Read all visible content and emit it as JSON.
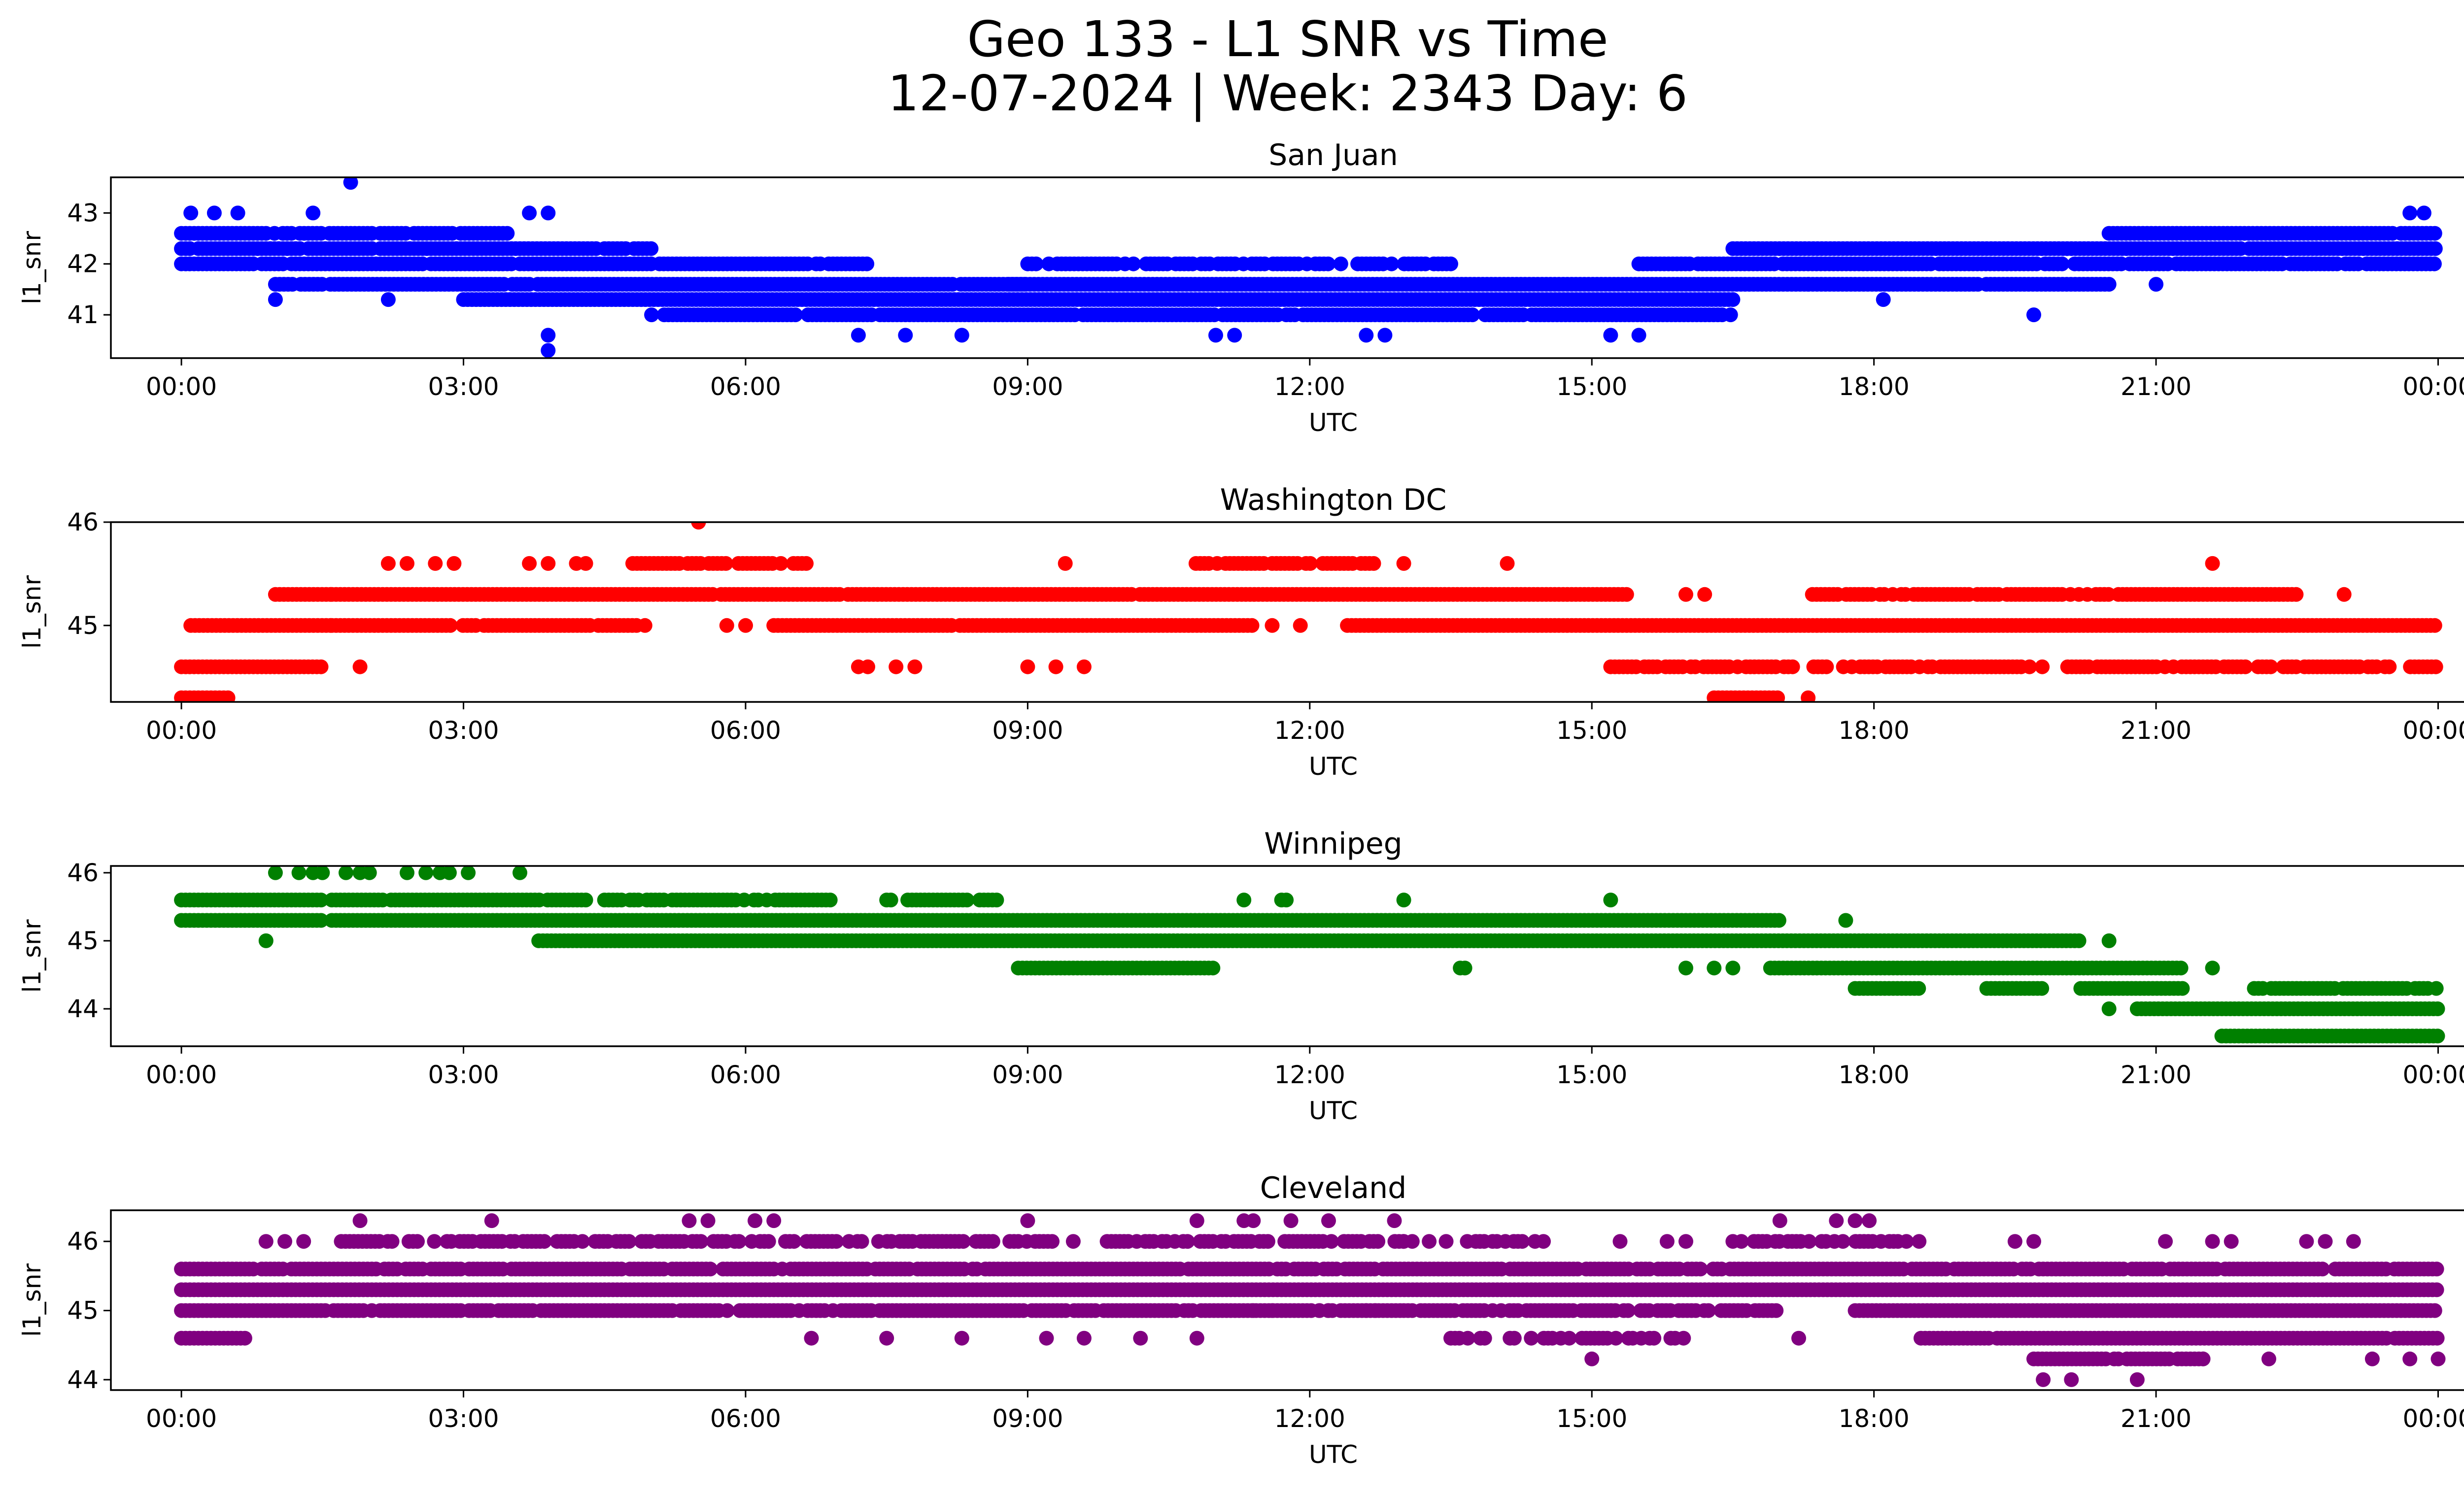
{
  "title_line1": "Geo 133 - L1 SNR vs Time",
  "title_line2": "12-07-2024 | Week: 2343 Day: 6",
  "chart_data": [
    {
      "type": "scatter",
      "title": "San Juan",
      "xlabel": "UTC",
      "ylabel": "l1_snr",
      "color": "#0000ff",
      "x_unit": "hours",
      "xlim": [
        -0.75,
        25.25
      ],
      "ylim": [
        40.15,
        43.7
      ],
      "xticks": [
        0,
        3,
        6,
        9,
        12,
        15,
        18,
        21,
        24
      ],
      "xtick_labels": [
        "00:00",
        "03:00",
        "06:00",
        "09:00",
        "12:00",
        "15:00",
        "18:00",
        "21:00",
        "00:00"
      ],
      "yticks": [
        41,
        42,
        43
      ],
      "ytick_labels": [
        "41",
        "42",
        "43"
      ],
      "bands": [
        {
          "y": 42.6,
          "start": 0.0,
          "end": 3.5,
          "density": 0.88
        },
        {
          "y": 42.3,
          "start": 0.0,
          "end": 5.0,
          "density": 0.93
        },
        {
          "y": 42.0,
          "start": 0.0,
          "end": 7.3,
          "density": 0.97
        },
        {
          "y": 41.6,
          "start": 1.0,
          "end": 9.0,
          "density": 0.96
        },
        {
          "y": 41.3,
          "start": 3.0,
          "end": 16.5,
          "density": 1.0
        },
        {
          "y": 41.0,
          "start": 5.0,
          "end": 16.5,
          "density": 0.93
        },
        {
          "y": 41.6,
          "start": 8.8,
          "end": 20.5,
          "density": 0.99
        },
        {
          "y": 42.0,
          "start": 9.0,
          "end": 13.5,
          "density": 0.8
        },
        {
          "y": 42.0,
          "start": 15.5,
          "end": 24.0,
          "density": 0.95
        },
        {
          "y": 42.3,
          "start": 16.5,
          "end": 24.0,
          "density": 0.99
        },
        {
          "y": 42.6,
          "start": 20.5,
          "end": 24.0,
          "density": 0.99
        }
      ],
      "points": [
        [
          1.8,
          43.6
        ],
        [
          0.1,
          43.0
        ],
        [
          0.35,
          43.0
        ],
        [
          0.6,
          43.0
        ],
        [
          1.4,
          43.0
        ],
        [
          3.7,
          43.0
        ],
        [
          3.9,
          43.0
        ],
        [
          23.7,
          43.0
        ],
        [
          23.85,
          43.0
        ],
        [
          3.9,
          40.3
        ],
        [
          3.9,
          40.6
        ],
        [
          7.2,
          40.6
        ],
        [
          7.7,
          40.6
        ],
        [
          8.3,
          40.6
        ],
        [
          11.0,
          40.6
        ],
        [
          11.2,
          40.6
        ],
        [
          12.6,
          40.6
        ],
        [
          12.8,
          40.6
        ],
        [
          15.2,
          40.6
        ],
        [
          15.5,
          40.6
        ],
        [
          1.0,
          41.3
        ],
        [
          2.2,
          41.3
        ],
        [
          19.7,
          41.0
        ],
        [
          17.3,
          41.6
        ],
        [
          18.1,
          41.3
        ],
        [
          21.0,
          41.6
        ]
      ]
    },
    {
      "type": "scatter",
      "title": "Washington DC",
      "xlabel": "UTC",
      "ylabel": "l1_snr",
      "color": "#ff0000",
      "x_unit": "hours",
      "xlim": [
        -0.75,
        25.25
      ],
      "ylim": [
        44.26,
        46.0
      ],
      "xticks": [
        0,
        3,
        6,
        9,
        12,
        15,
        18,
        21,
        24
      ],
      "xtick_labels": [
        "00:00",
        "03:00",
        "06:00",
        "09:00",
        "12:00",
        "15:00",
        "18:00",
        "21:00",
        "00:00"
      ],
      "yticks": [
        45,
        46
      ],
      "ytick_labels": [
        "45",
        "46"
      ],
      "bands": [
        {
          "y": 44.3,
          "start": 0.0,
          "end": 0.5,
          "density": 1.0
        },
        {
          "y": 44.6,
          "start": 0.0,
          "end": 1.5,
          "density": 1.0
        },
        {
          "y": 45.0,
          "start": 0.1,
          "end": 1.6,
          "density": 0.98
        },
        {
          "y": 45.3,
          "start": 1.0,
          "end": 1.6,
          "density": 1.0
        },
        {
          "y": 45.0,
          "start": 1.6,
          "end": 5.0,
          "density": 0.92
        },
        {
          "y": 45.3,
          "start": 1.6,
          "end": 15.4,
          "density": 0.99
        },
        {
          "y": 45.6,
          "start": 4.8,
          "end": 6.7,
          "density": 0.93
        },
        {
          "y": 45.6,
          "start": 10.7,
          "end": 12.7,
          "density": 0.85
        },
        {
          "y": 45.0,
          "start": 6.3,
          "end": 11.4,
          "density": 0.97
        },
        {
          "y": 45.0,
          "start": 12.4,
          "end": 24.0,
          "density": 1.0
        },
        {
          "y": 44.6,
          "start": 15.2,
          "end": 24.0,
          "density": 0.82
        },
        {
          "y": 45.3,
          "start": 17.3,
          "end": 20.5,
          "density": 0.9
        },
        {
          "y": 45.3,
          "start": 20.6,
          "end": 22.5,
          "density": 0.95
        },
        {
          "y": 44.3,
          "start": 16.3,
          "end": 17.0,
          "density": 1.0
        }
      ],
      "points": [
        [
          5.5,
          46.0
        ],
        [
          2.2,
          45.6
        ],
        [
          2.4,
          45.6
        ],
        [
          2.7,
          45.6
        ],
        [
          2.9,
          45.6
        ],
        [
          3.7,
          45.6
        ],
        [
          3.9,
          45.6
        ],
        [
          4.2,
          45.6
        ],
        [
          4.3,
          45.6
        ],
        [
          9.4,
          45.6
        ],
        [
          13.0,
          45.6
        ],
        [
          14.1,
          45.6
        ],
        [
          21.6,
          45.6
        ],
        [
          1.9,
          44.6
        ],
        [
          7.2,
          44.6
        ],
        [
          7.3,
          44.6
        ],
        [
          7.6,
          44.6
        ],
        [
          7.8,
          44.6
        ],
        [
          9.0,
          44.6
        ],
        [
          9.3,
          44.6
        ],
        [
          9.6,
          44.6
        ],
        [
          17.3,
          44.3
        ],
        [
          16.0,
          45.3
        ],
        [
          16.2,
          45.3
        ],
        [
          23.0,
          45.3
        ],
        [
          5.8,
          45.0
        ],
        [
          6.0,
          45.0
        ],
        [
          11.6,
          45.0
        ],
        [
          11.9,
          45.0
        ]
      ]
    },
    {
      "type": "scatter",
      "title": "Winnipeg",
      "xlabel": "UTC",
      "ylabel": "l1_snr",
      "color": "#008000",
      "x_unit": "hours",
      "xlim": [
        -0.75,
        25.25
      ],
      "ylim": [
        43.45,
        46.1
      ],
      "xticks": [
        0,
        3,
        6,
        9,
        12,
        15,
        18,
        21,
        24
      ],
      "xtick_labels": [
        "00:00",
        "03:00",
        "06:00",
        "09:00",
        "12:00",
        "15:00",
        "18:00",
        "21:00",
        "00:00"
      ],
      "yticks": [
        44,
        45,
        46
      ],
      "ytick_labels": [
        "44",
        "45",
        "46"
      ],
      "bands": [
        {
          "y": 45.6,
          "start": 0.0,
          "end": 1.5,
          "density": 1.0
        },
        {
          "y": 45.3,
          "start": 0.0,
          "end": 1.5,
          "density": 1.0
        },
        {
          "y": 45.6,
          "start": 1.6,
          "end": 4.3,
          "density": 0.97
        },
        {
          "y": 45.3,
          "start": 1.6,
          "end": 17.0,
          "density": 1.0
        },
        {
          "y": 45.6,
          "start": 4.5,
          "end": 6.0,
          "density": 0.85
        },
        {
          "y": 45.6,
          "start": 6.0,
          "end": 7.0,
          "density": 0.75
        },
        {
          "y": 45.6,
          "start": 7.5,
          "end": 8.7,
          "density": 0.85
        },
        {
          "y": 45.0,
          "start": 3.8,
          "end": 20.2,
          "density": 1.0
        },
        {
          "y": 44.6,
          "start": 8.9,
          "end": 11.0,
          "density": 1.0
        },
        {
          "y": 44.6,
          "start": 16.9,
          "end": 21.3,
          "density": 1.0
        },
        {
          "y": 44.3,
          "start": 17.8,
          "end": 18.5,
          "density": 1.0
        },
        {
          "y": 44.3,
          "start": 19.2,
          "end": 19.8,
          "density": 1.0
        },
        {
          "y": 44.3,
          "start": 20.2,
          "end": 21.3,
          "density": 1.0
        },
        {
          "y": 44.3,
          "start": 22.0,
          "end": 24.0,
          "density": 0.9
        },
        {
          "y": 44.0,
          "start": 20.8,
          "end": 24.0,
          "density": 1.0
        },
        {
          "y": 43.6,
          "start": 21.7,
          "end": 24.0,
          "density": 1.0
        }
      ],
      "points": [
        [
          1.0,
          46.0
        ],
        [
          1.25,
          46.0
        ],
        [
          1.4,
          46.0
        ],
        [
          1.5,
          46.0
        ],
        [
          1.75,
          46.0
        ],
        [
          1.9,
          46.0
        ],
        [
          2.0,
          46.0
        ],
        [
          2.4,
          46.0
        ],
        [
          2.6,
          46.0
        ],
        [
          2.75,
          46.0
        ],
        [
          2.85,
          46.0
        ],
        [
          3.05,
          46.0
        ],
        [
          3.6,
          46.0
        ],
        [
          0.9,
          45.0
        ],
        [
          11.3,
          45.6
        ],
        [
          11.7,
          45.6
        ],
        [
          11.75,
          45.6
        ],
        [
          13.0,
          45.6
        ],
        [
          15.2,
          45.6
        ],
        [
          17.7,
          45.3
        ],
        [
          20.5,
          45.0
        ],
        [
          13.6,
          44.6
        ],
        [
          13.65,
          44.6
        ],
        [
          16.0,
          44.6
        ],
        [
          16.3,
          44.6
        ],
        [
          16.5,
          44.6
        ],
        [
          21.6,
          44.6
        ],
        [
          20.5,
          44.0
        ]
      ]
    },
    {
      "type": "scatter",
      "title": "Cleveland",
      "xlabel": "UTC",
      "ylabel": "l1_snr",
      "color": "#800080",
      "x_unit": "hours",
      "xlim": [
        -0.75,
        25.25
      ],
      "ylim": [
        43.85,
        46.45
      ],
      "xticks": [
        0,
        3,
        6,
        9,
        12,
        15,
        18,
        21,
        24
      ],
      "xtick_labels": [
        "00:00",
        "03:00",
        "06:00",
        "09:00",
        "12:00",
        "15:00",
        "18:00",
        "21:00",
        "00:00"
      ],
      "yticks": [
        44,
        45,
        46
      ],
      "ytick_labels": [
        "44",
        "45",
        "46"
      ],
      "bands": [
        {
          "y": 45.6,
          "start": 0.0,
          "end": 24.0,
          "density": 0.92
        },
        {
          "y": 45.3,
          "start": 0.0,
          "end": 24.0,
          "density": 1.0
        },
        {
          "y": 45.0,
          "start": 0.0,
          "end": 13.0,
          "density": 0.92
        },
        {
          "y": 45.0,
          "start": 13.0,
          "end": 17.0,
          "density": 0.85
        },
        {
          "y": 45.0,
          "start": 17.8,
          "end": 24.0,
          "density": 1.0
        },
        {
          "y": 44.6,
          "start": 0.0,
          "end": 0.7,
          "density": 1.0
        },
        {
          "y": 44.6,
          "start": 13.5,
          "end": 16.0,
          "density": 0.6
        },
        {
          "y": 44.6,
          "start": 18.5,
          "end": 24.0,
          "density": 0.92
        },
        {
          "y": 44.3,
          "start": 19.7,
          "end": 21.5,
          "density": 0.9
        },
        {
          "y": 46.0,
          "start": 1.7,
          "end": 9.5,
          "density": 0.7
        },
        {
          "y": 46.0,
          "start": 9.8,
          "end": 13.0,
          "density": 0.6
        },
        {
          "y": 46.0,
          "start": 13.0,
          "end": 14.5,
          "density": 0.5
        },
        {
          "y": 46.0,
          "start": 16.5,
          "end": 18.5,
          "density": 0.55
        }
      ],
      "points": [
        [
          1.9,
          46.3
        ],
        [
          3.3,
          46.3
        ],
        [
          5.4,
          46.3
        ],
        [
          5.6,
          46.3
        ],
        [
          6.1,
          46.3
        ],
        [
          6.3,
          46.3
        ],
        [
          9.0,
          46.3
        ],
        [
          10.8,
          46.3
        ],
        [
          11.3,
          46.3
        ],
        [
          11.4,
          46.3
        ],
        [
          11.8,
          46.3
        ],
        [
          12.2,
          46.3
        ],
        [
          12.9,
          46.3
        ],
        [
          17.0,
          46.3
        ],
        [
          17.6,
          46.3
        ],
        [
          17.8,
          46.3
        ],
        [
          17.95,
          46.3
        ],
        [
          0.9,
          46.0
        ],
        [
          1.1,
          46.0
        ],
        [
          1.3,
          46.0
        ],
        [
          15.3,
          46.0
        ],
        [
          15.8,
          46.0
        ],
        [
          16.0,
          46.0
        ],
        [
          19.5,
          46.0
        ],
        [
          19.7,
          46.0
        ],
        [
          21.1,
          46.0
        ],
        [
          21.6,
          46.0
        ],
        [
          21.8,
          46.0
        ],
        [
          22.6,
          46.0
        ],
        [
          22.8,
          46.0
        ],
        [
          23.1,
          46.0
        ],
        [
          6.7,
          44.6
        ],
        [
          7.5,
          44.6
        ],
        [
          8.3,
          44.6
        ],
        [
          9.2,
          44.6
        ],
        [
          9.6,
          44.6
        ],
        [
          10.2,
          44.6
        ],
        [
          10.8,
          44.6
        ],
        [
          15.0,
          44.3
        ],
        [
          17.2,
          44.6
        ],
        [
          19.8,
          44.0
        ],
        [
          20.1,
          44.0
        ],
        [
          20.8,
          44.0
        ],
        [
          24.0,
          44.3
        ],
        [
          23.3,
          44.3
        ],
        [
          23.7,
          44.3
        ],
        [
          21.5,
          44.3
        ],
        [
          22.2,
          44.3
        ],
        [
          11.4,
          45.0
        ],
        [
          11.6,
          45.0
        ],
        [
          12.1,
          45.0
        ],
        [
          12.2,
          45.0
        ],
        [
          12.6,
          45.0
        ],
        [
          12.7,
          45.0
        ]
      ]
    }
  ]
}
